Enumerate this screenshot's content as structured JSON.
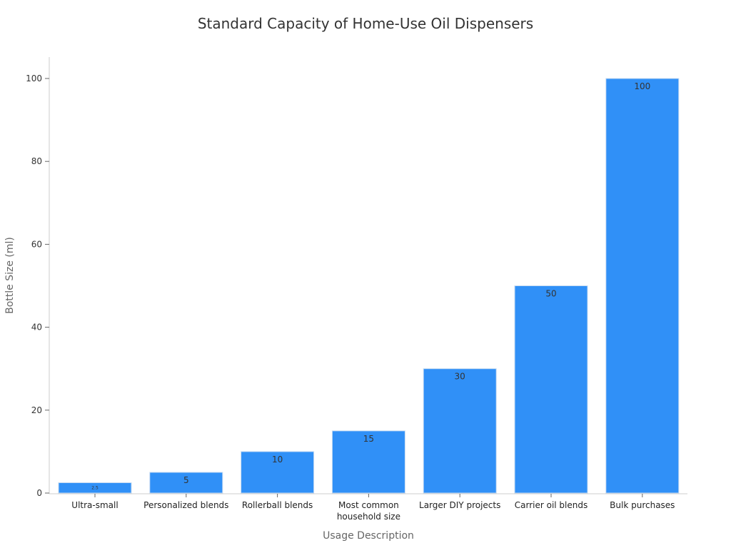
{
  "chart_data": {
    "type": "bar",
    "title": "Standard Capacity of Home-Use Oil Dispensers",
    "xlabel": "Usage Description",
    "ylabel": "Bottle Size (ml)",
    "categories": [
      "Ultra-small",
      "Personalized blends",
      "Rollerball blends",
      "Most common\nhousehold size",
      "Larger DIY projects",
      "Carrier oil blends",
      "Bulk purchases"
    ],
    "values": [
      2.5,
      5,
      10,
      15,
      30,
      50,
      100
    ],
    "data_labels": [
      "2.5",
      "5",
      "10",
      "15",
      "30",
      "50",
      "100"
    ],
    "ylim": [
      0,
      105
    ],
    "yticks": [
      0,
      20,
      40,
      60,
      80,
      100
    ],
    "grid": false,
    "colors": {
      "bar": "#3090f7",
      "bar_edge": "#c8dcf2",
      "label": "#333333"
    }
  }
}
